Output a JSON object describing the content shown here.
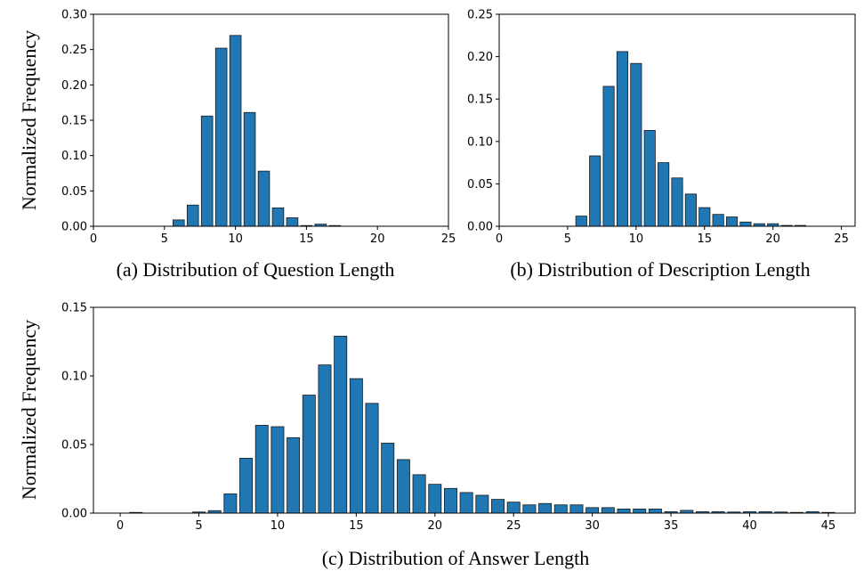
{
  "chart_data": [
    {
      "id": "question",
      "type": "bar",
      "caption": "(a) Distribution of Question Length",
      "ylabel": "Normalized Frequency",
      "xlabel": "",
      "xlim": [
        0,
        25
      ],
      "ylim": [
        0,
        0.3
      ],
      "xticks": [
        "0",
        "5",
        "10",
        "15",
        "20",
        "25"
      ],
      "xtick_values": [
        0,
        5,
        10,
        15,
        20,
        25
      ],
      "yticks": [
        "0.00",
        "0.05",
        "0.10",
        "0.15",
        "0.20",
        "0.25",
        "0.30"
      ],
      "ytick_values": [
        0,
        0.05,
        0.1,
        0.15,
        0.2,
        0.25,
        0.3
      ],
      "x": [
        6,
        7,
        8,
        9,
        10,
        11,
        12,
        13,
        14,
        15,
        16,
        17
      ],
      "values": [
        0.009,
        0.03,
        0.156,
        0.252,
        0.27,
        0.161,
        0.078,
        0.026,
        0.012,
        0.001,
        0.003,
        0.001
      ],
      "bar_color": "#1f77b4"
    },
    {
      "id": "description",
      "type": "bar",
      "caption": "(b) Distribution of Description Length",
      "ylabel": "",
      "xlabel": "",
      "xlim": [
        0,
        26
      ],
      "ylim": [
        0,
        0.25
      ],
      "xticks": [
        "0",
        "5",
        "10",
        "15",
        "20",
        "25"
      ],
      "xtick_values": [
        0,
        5,
        10,
        15,
        20,
        25
      ],
      "yticks": [
        "0.00",
        "0.05",
        "0.10",
        "0.15",
        "0.20",
        "0.25"
      ],
      "ytick_values": [
        0,
        0.05,
        0.1,
        0.15,
        0.2,
        0.25
      ],
      "x": [
        6,
        7,
        8,
        9,
        10,
        11,
        12,
        13,
        14,
        15,
        16,
        17,
        18,
        19,
        20,
        21,
        22
      ],
      "values": [
        0.012,
        0.083,
        0.165,
        0.206,
        0.192,
        0.113,
        0.075,
        0.057,
        0.038,
        0.022,
        0.014,
        0.011,
        0.005,
        0.003,
        0.003,
        0.001,
        0.001
      ],
      "bar_color": "#1f77b4"
    },
    {
      "id": "answer",
      "type": "bar",
      "caption": "(c) Distribution of Answer Length",
      "ylabel": "Normalized Frequency",
      "xlabel": "",
      "xlim": [
        -1.7,
        46.7
      ],
      "ylim": [
        0,
        0.15
      ],
      "xticks": [
        "0",
        "5",
        "10",
        "15",
        "20",
        "25",
        "30",
        "35",
        "40",
        "45"
      ],
      "xtick_values": [
        0,
        5,
        10,
        15,
        20,
        25,
        30,
        35,
        40,
        45
      ],
      "yticks": [
        "0.00",
        "0.05",
        "0.10",
        "0.15"
      ],
      "ytick_values": [
        0,
        0.05,
        0.1,
        0.15
      ],
      "x": [
        1,
        5,
        6,
        7,
        8,
        9,
        10,
        11,
        12,
        13,
        14,
        15,
        16,
        17,
        18,
        19,
        20,
        21,
        22,
        23,
        24,
        25,
        26,
        27,
        28,
        29,
        30,
        31,
        32,
        33,
        34,
        35,
        36,
        37,
        38,
        39,
        40,
        41,
        42,
        43,
        44,
        45
      ],
      "values": [
        0.0005,
        0.0008,
        0.0018,
        0.014,
        0.04,
        0.064,
        0.063,
        0.055,
        0.086,
        0.108,
        0.129,
        0.098,
        0.08,
        0.051,
        0.039,
        0.028,
        0.021,
        0.018,
        0.015,
        0.013,
        0.01,
        0.008,
        0.006,
        0.007,
        0.006,
        0.006,
        0.004,
        0.004,
        0.003,
        0.003,
        0.003,
        0.001,
        0.002,
        0.001,
        0.001,
        0.0008,
        0.001,
        0.001,
        0.0008,
        0.0005,
        0.001,
        0.0005
      ],
      "bar_color": "#1f77b4"
    }
  ]
}
